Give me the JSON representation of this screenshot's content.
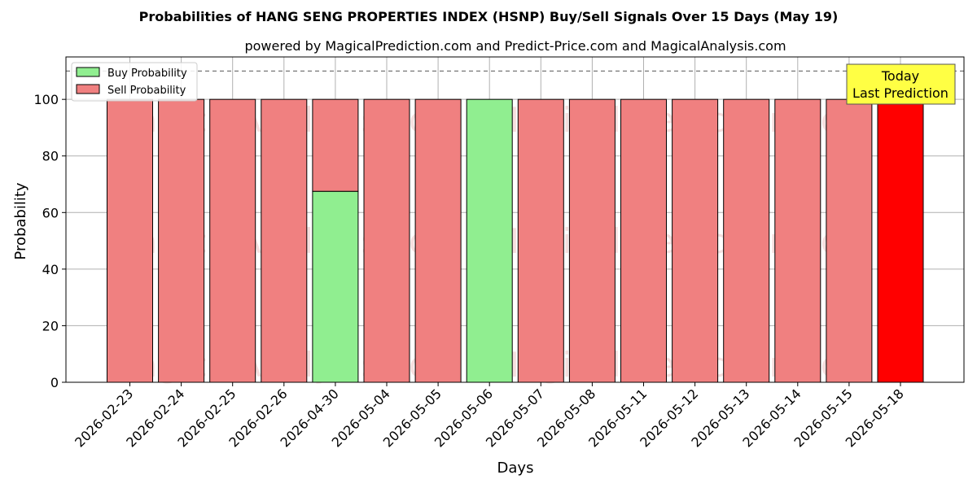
{
  "chart_data": {
    "type": "bar",
    "stacked": true,
    "title": "Probabilities of HANG SENG PROPERTIES INDEX (HSNP) Buy/Sell Signals Over 15 Days (May 19)",
    "subtitle": "powered by MagicalPrediction.com and Predict-Price.com and MagicalAnalysis.com",
    "xlabel": "Days",
    "ylabel": "Probability",
    "ylim": [
      0,
      115
    ],
    "yticks": [
      0,
      20,
      40,
      60,
      80,
      100
    ],
    "grid": true,
    "legend_position": "upper-left",
    "reference_line": 110,
    "categories": [
      "2026-02-23",
      "2026-02-24",
      "2026-02-25",
      "2026-02-26",
      "2026-04-30",
      "2026-05-04",
      "2026-05-05",
      "2026-05-06",
      "2026-05-07",
      "2026-05-08",
      "2026-05-11",
      "2026-05-12",
      "2026-05-13",
      "2026-05-14",
      "2026-05-15",
      "2026-05-18"
    ],
    "series": [
      {
        "name": "Buy Probability",
        "color": "#90ee90",
        "values": [
          0,
          0,
          0,
          0,
          67.5,
          0,
          0,
          100,
          0,
          0,
          0,
          0,
          0,
          0,
          0,
          0
        ]
      },
      {
        "name": "Sell Probability",
        "color": "#f08080",
        "values": [
          100,
          100,
          100,
          100,
          32.5,
          100,
          100,
          0,
          100,
          100,
          100,
          100,
          100,
          100,
          100,
          100
        ]
      }
    ],
    "highlight": {
      "index": 15,
      "color": "#ff0000"
    },
    "annotation": {
      "line1": "Today",
      "line2": "Last Prediction",
      "background": "#ffff44"
    },
    "watermarks": [
      "MagicalAnalysis.com",
      "MagicalPrediction.com"
    ]
  }
}
